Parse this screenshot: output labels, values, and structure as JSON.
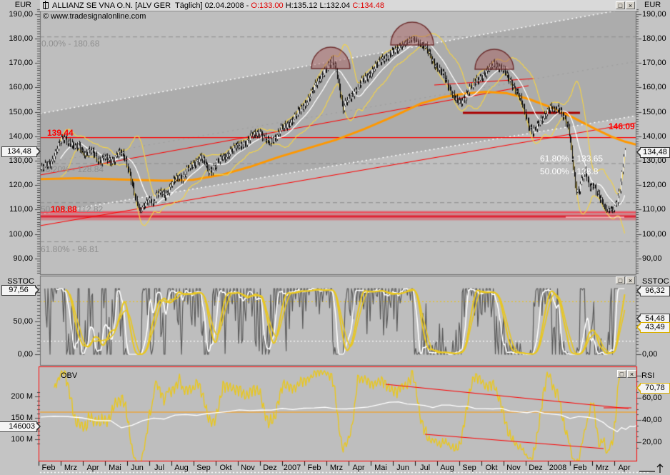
{
  "window": {
    "eur_left": "EUR",
    "eur_right": "EUR",
    "title": {
      "instrument": "ALLIANZ SE VNA O.N.",
      "context": " [ALV GER  Täglich] ",
      "date": "02.04.2008",
      "dash": " - ",
      "open": "O:133.00",
      "high": " H:135.12 ",
      "low": "L:132.04 ",
      "close": "C:134.48"
    },
    "copyright": "© www.tradesignalonline.com",
    "buttons": {
      "maximize": "□",
      "close": "×"
    }
  },
  "panels": {
    "main": {
      "price_tag_left": "134,48",
      "price_tag_right": "134,48",
      "y_labels": [
        "190,00",
        "180,00",
        "170,00",
        "160,00",
        "150,00",
        "140,00",
        "130,00",
        "120,00",
        "110,00",
        "100,00",
        "90,00"
      ],
      "y_values": [
        190,
        180,
        170,
        160,
        150,
        140,
        130,
        120,
        110,
        100,
        90
      ],
      "fib_gray": [
        {
          "text": "0.00% - 180.68",
          "value": 180.68
        },
        {
          "text": "38.20% - 128.84",
          "value": 128.84
        },
        {
          "text": "50.00% - 112.82",
          "value": 112.82
        },
        {
          "text": "61.80% - 96.81",
          "value": 96.81
        }
      ],
      "fib_white": [
        {
          "text": "61.80% - 133.65",
          "value": 133.65
        },
        {
          "text": "50.00% - 128.8",
          "value": 128.8
        }
      ],
      "red_139": "139.44",
      "red_146": "146.09",
      "red_108": "108.88"
    },
    "sstoc": {
      "title": "SSTOC",
      "tag_left": "97,56",
      "tags_right": [
        {
          "text": "96,32",
          "style": "white"
        },
        {
          "text": "54,48",
          "style": "white"
        },
        {
          "text": "43,49",
          "style": "yellow"
        }
      ],
      "left_labels": [
        {
          "text": "50,00",
          "value": 50
        },
        {
          "text": "0,00",
          "value": 0
        }
      ],
      "right_labels": [
        {
          "text": "0,00",
          "value": 0
        }
      ]
    },
    "obv": {
      "title": "OBV",
      "tag": "146003",
      "labels": [
        {
          "text": "200 M",
          "value": 200
        },
        {
          "text": "150 M",
          "value": 150
        },
        {
          "text": "100 M",
          "value": 100
        }
      ]
    },
    "rsi": {
      "title": "RSI",
      "tag": "70,78",
      "labels": [
        {
          "text": "60,00",
          "value": 60
        },
        {
          "text": "40,00",
          "value": 40
        },
        {
          "text": "20,00",
          "value": 20
        }
      ]
    }
  },
  "x_axis": {
    "months": [
      "Feb",
      "Mrz",
      "Apr",
      "Mai",
      "Jun",
      "Jul",
      "Aug",
      "Sep",
      "Okt",
      "Nov",
      "Dez",
      "2007",
      "Feb",
      "Mrz",
      "Apr",
      "Mai",
      "Jun",
      "Jul",
      "Aug",
      "Sep",
      "Okt",
      "Nov",
      "Dez",
      "2008",
      "Feb",
      "Mrz",
      "Apr"
    ],
    "start_x": 68,
    "step": 31
  },
  "colors": {
    "red": "#ff0000",
    "dark_red": "#aa0000",
    "orange": "#ff9800",
    "band_yellow": "#f2d24a",
    "stoch_yellow": "#e9c71f",
    "white": "#ffffff",
    "candle": "#0a0a0a",
    "stoch_gray": "#5a5a5a",
    "gray_label": "#8f8f8f",
    "plot_bg": "#bebebe",
    "channel_bg": "#acacac",
    "chrome": "#c4c4c4",
    "support_fill": "rgba(228,64,80,0.45)",
    "support_core": "#e02535",
    "dashed_gray": "#8d8d8d",
    "dome_fill": "rgba(165,95,95,0.5)",
    "dome_stroke": "rgba(100,30,30,0.85)"
  },
  "chart_data": {
    "type": "candlestick",
    "title": "ALLIANZ SE VNA O.N. [ALV GER] Täglich",
    "period": "Feb 2006 - Apr 2008",
    "ylim": [
      83,
      191.5
    ],
    "last_bar": {
      "date": "02.04.2008",
      "open": 133.0,
      "high": 135.12,
      "low": 132.04,
      "close": 134.48
    },
    "fib_levels_gray": [
      180.68,
      128.84,
      112.82,
      96.81
    ],
    "fib_levels_white": [
      133.65,
      128.8
    ],
    "horizontal_red_level": 139.44,
    "trendline_end_value": 146.09,
    "support_level": 108.88,
    "support_band": [
      105.6,
      109.5
    ],
    "price_anchors": [
      [
        55,
        126
      ],
      [
        60,
        127
      ],
      [
        65,
        128
      ],
      [
        70,
        129
      ],
      [
        75,
        132
      ],
      [
        80,
        135
      ],
      [
        85,
        138
      ],
      [
        90,
        139.4
      ],
      [
        95,
        138
      ],
      [
        100,
        137
      ],
      [
        105,
        135
      ],
      [
        110,
        136
      ],
      [
        115,
        134
      ],
      [
        120,
        133
      ],
      [
        125,
        134
      ],
      [
        130,
        133
      ],
      [
        135,
        131
      ],
      [
        140,
        130
      ],
      [
        145,
        132
      ],
      [
        150,
        130
      ],
      [
        155,
        129
      ],
      [
        160,
        131
      ],
      [
        165,
        134
      ],
      [
        170,
        133
      ],
      [
        175,
        130
      ],
      [
        180,
        126
      ],
      [
        185,
        121
      ],
      [
        190,
        114
      ],
      [
        196,
        108.8
      ],
      [
        202,
        112
      ],
      [
        208,
        115
      ],
      [
        214,
        112
      ],
      [
        220,
        116
      ],
      [
        226,
        117.5
      ],
      [
        232,
        116
      ],
      [
        238,
        119
      ],
      [
        244,
        122
      ],
      [
        250,
        124
      ],
      [
        256,
        123
      ],
      [
        262,
        126
      ],
      [
        268,
        128
      ],
      [
        274,
        130
      ],
      [
        280,
        131
      ],
      [
        286,
        129
      ],
      [
        292,
        126
      ],
      [
        298,
        127
      ],
      [
        304,
        129
      ],
      [
        310,
        131
      ],
      [
        316,
        132
      ],
      [
        322,
        134
      ],
      [
        328,
        135
      ],
      [
        334,
        136
      ],
      [
        340,
        137
      ],
      [
        346,
        138
      ],
      [
        352,
        140
      ],
      [
        358,
        141
      ],
      [
        364,
        142
      ],
      [
        370,
        139
      ],
      [
        376,
        137
      ],
      [
        382,
        139
      ],
      [
        388,
        141
      ],
      [
        394,
        143
      ],
      [
        400,
        144
      ],
      [
        406,
        146
      ],
      [
        412,
        148
      ],
      [
        418,
        150
      ],
      [
        424,
        152
      ],
      [
        430,
        155
      ],
      [
        436,
        158
      ],
      [
        442,
        161
      ],
      [
        448,
        164
      ],
      [
        454,
        167
      ],
      [
        460,
        169
      ],
      [
        465,
        170.5
      ],
      [
        470,
        168
      ],
      [
        475,
        160
      ],
      [
        480,
        151
      ],
      [
        485,
        154
      ],
      [
        490,
        156
      ],
      [
        495,
        158
      ],
      [
        500,
        160
      ],
      [
        506,
        162
      ],
      [
        512,
        164
      ],
      [
        518,
        166
      ],
      [
        524,
        168
      ],
      [
        530,
        170
      ],
      [
        536,
        172
      ],
      [
        542,
        173
      ],
      [
        548,
        174
      ],
      [
        554,
        175
      ],
      [
        560,
        177
      ],
      [
        566,
        178
      ],
      [
        572,
        179
      ],
      [
        578,
        180.3
      ],
      [
        584,
        179
      ],
      [
        590,
        177
      ],
      [
        596,
        176
      ],
      [
        602,
        173
      ],
      [
        608,
        170
      ],
      [
        614,
        167
      ],
      [
        620,
        165
      ],
      [
        626,
        162
      ],
      [
        632,
        158
      ],
      [
        638,
        154.5
      ],
      [
        644,
        153.5
      ],
      [
        650,
        156
      ],
      [
        656,
        159
      ],
      [
        662,
        161
      ],
      [
        668,
        163
      ],
      [
        674,
        165
      ],
      [
        680,
        166
      ],
      [
        686,
        168
      ],
      [
        692,
        170
      ],
      [
        698,
        169
      ],
      [
        704,
        167
      ],
      [
        710,
        164
      ],
      [
        716,
        162
      ],
      [
        722,
        159
      ],
      [
        728,
        155
      ],
      [
        734,
        150
      ],
      [
        740,
        145
      ],
      [
        746,
        141.5
      ],
      [
        752,
        144
      ],
      [
        758,
        147
      ],
      [
        764,
        150
      ],
      [
        770,
        151.5
      ],
      [
        776,
        150
      ],
      [
        782,
        152
      ],
      [
        788,
        149
      ],
      [
        794,
        144
      ],
      [
        798,
        138
      ],
      [
        802,
        128
      ],
      [
        806,
        119
      ],
      [
        810,
        117.5
      ],
      [
        814,
        122
      ],
      [
        818,
        125
      ],
      [
        822,
        122
      ],
      [
        826,
        119
      ],
      [
        830,
        121
      ],
      [
        834,
        118
      ],
      [
        838,
        115
      ],
      [
        842,
        113
      ],
      [
        846,
        111
      ],
      [
        850,
        109.8
      ],
      [
        854,
        110.5
      ],
      [
        858,
        109.5
      ],
      [
        862,
        112
      ],
      [
        865,
        115
      ],
      [
        868,
        119
      ],
      [
        870,
        124
      ],
      [
        872,
        129
      ],
      [
        874,
        134.48
      ]
    ],
    "ma200_anchors": [
      [
        56,
        122.5
      ],
      [
        110,
        122.8
      ],
      [
        170,
        122.3
      ],
      [
        230,
        121.8
      ],
      [
        270,
        122.2
      ],
      [
        310,
        124.2
      ],
      [
        350,
        127.5
      ],
      [
        390,
        131.5
      ],
      [
        430,
        135
      ],
      [
        470,
        138.5
      ],
      [
        510,
        143
      ],
      [
        550,
        148
      ],
      [
        590,
        153.5
      ],
      [
        620,
        156
      ],
      [
        650,
        157.5
      ],
      [
        680,
        158.2
      ],
      [
        710,
        157.6
      ],
      [
        740,
        155.3
      ],
      [
        770,
        152
      ],
      [
        800,
        148
      ],
      [
        830,
        143.5
      ],
      [
        855,
        140
      ],
      [
        875,
        137.8
      ],
      [
        891,
        136.6
      ]
    ],
    "sstoc": {
      "dotted_levels": [
        80,
        20
      ],
      "last_values": {
        "fast": 97.56,
        "k": 96.32,
        "d": 54.48,
        "slow": 43.49
      }
    },
    "obv": {
      "unit": "M",
      "last_label": "146003",
      "anchors": [
        [
          57,
          150
        ],
        [
          75,
          155
        ],
        [
          95,
          152
        ],
        [
          115,
          148
        ],
        [
          135,
          147
        ],
        [
          155,
          142
        ],
        [
          170,
          128
        ],
        [
          185,
          133
        ],
        [
          200,
          142
        ],
        [
          215,
          150
        ],
        [
          230,
          148
        ],
        [
          245,
          155
        ],
        [
          260,
          158
        ],
        [
          275,
          157
        ],
        [
          290,
          159
        ],
        [
          305,
          162
        ],
        [
          320,
          166
        ],
        [
          335,
          168
        ],
        [
          350,
          166
        ],
        [
          365,
          169
        ],
        [
          380,
          168
        ],
        [
          395,
          171
        ],
        [
          410,
          170
        ],
        [
          425,
          173
        ],
        [
          440,
          172
        ],
        [
          455,
          175
        ],
        [
          470,
          172
        ],
        [
          485,
          170
        ],
        [
          500,
          173
        ],
        [
          515,
          176
        ],
        [
          530,
          180
        ],
        [
          545,
          186
        ],
        [
          558,
          189
        ],
        [
          570,
          185
        ],
        [
          582,
          181
        ],
        [
          594,
          177
        ],
        [
          606,
          174
        ],
        [
          618,
          181
        ],
        [
          630,
          178
        ],
        [
          642,
          173
        ],
        [
          654,
          176
        ],
        [
          666,
          172
        ],
        [
          678,
          170
        ],
        [
          690,
          168
        ],
        [
          702,
          172
        ],
        [
          714,
          168
        ],
        [
          726,
          164
        ],
        [
          738,
          161
        ],
        [
          750,
          167
        ],
        [
          762,
          164
        ],
        [
          774,
          160
        ],
        [
          786,
          156
        ],
        [
          798,
          150
        ],
        [
          810,
          156
        ],
        [
          822,
          152
        ],
        [
          834,
          146
        ],
        [
          845,
          139
        ],
        [
          852,
          131
        ],
        [
          858,
          125
        ],
        [
          864,
          120
        ],
        [
          870,
          126
        ],
        [
          876,
          123
        ],
        [
          882,
          127
        ],
        [
          887,
          129
        ],
        [
          891,
          131
        ]
      ]
    },
    "rsi": {
      "last": 70.78
    },
    "annotations": {
      "domes": [
        {
          "cx": 463,
          "cy": 96,
          "rx": 27,
          "ry": 30
        },
        {
          "cx": 577,
          "cy": 63,
          "rx": 30,
          "ry": 32
        },
        {
          "cx": 692,
          "cy": 97,
          "rx": 27,
          "ry": 28
        }
      ],
      "red_trendlines": [
        [
          56,
          245,
          740,
          120
        ],
        [
          608,
          119,
          748,
          110
        ],
        [
          56,
          316,
          891,
          172
        ]
      ],
      "dark_red_segment": [
        648,
        158,
        812,
        158
      ],
      "white_segment": [
        792,
        304,
        874,
        304
      ],
      "channel_dotted": [
        [
          56,
          159,
          891,
          10
        ],
        [
          56,
          300,
          891,
          162
        ]
      ],
      "channel_center_dotted": [
        56,
        229,
        891,
        86
      ],
      "obv_red_lines": [
        [
          540,
          538,
          880,
          572
        ],
        [
          595,
          608,
          845,
          628
        ],
        [
          845,
          571,
          884,
          571
        ]
      ],
      "obv_orange_y": 577
    }
  }
}
